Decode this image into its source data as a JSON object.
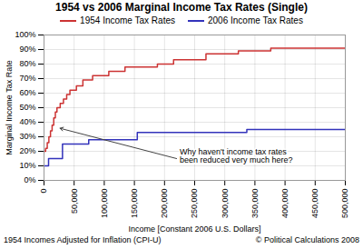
{
  "chart_data": {
    "type": "line",
    "title": "1954 vs 2006 Marginal Income Tax Rates (Single)",
    "x_label": "Income [Constant 2006 U.S. Dollars]",
    "y_label": "Marginal Income Tax Rate",
    "annotations": [
      {
        "text": "Why haven't income tax rates\nbeen reduced very much here?",
        "x": 25000,
        "y": 0.36
      }
    ],
    "footnotes": [
      "1954 Incomes Adjusted for Inflation (CPI-U)",
      "© Political Calculations 2008"
    ],
    "xlim": [
      0,
      500000
    ],
    "ylim": [
      0,
      1.0
    ],
    "xticks": [
      0,
      {
        "value": 50000,
        "label": "50,000"
      },
      {
        "value": 100000,
        "label": "100,000"
      },
      {
        "value": 150000,
        "label": "150,000"
      },
      {
        "value": 200000,
        "label": "200,000"
      },
      {
        "value": 250000,
        "label": "250,000"
      },
      {
        "value": 300000,
        "label": "300,000"
      },
      {
        "value": 350000,
        "label": "350,000"
      },
      {
        "value": 400000,
        "label": "400,000"
      },
      {
        "value": 450000,
        "label": "450,000"
      },
      {
        "value": 500000,
        "label": "500,000"
      }
    ],
    "yticks": [
      {
        "value": 0,
        "label": "0%"
      },
      {
        "value": 0.1,
        "label": "10%"
      },
      {
        "value": 0.2,
        "label": "20%"
      },
      {
        "value": 0.3,
        "label": "30%"
      },
      {
        "value": 0.4,
        "label": "40%"
      },
      {
        "value": 0.5,
        "label": "50%"
      },
      {
        "value": 0.6,
        "label": "60%"
      },
      {
        "value": 0.7,
        "label": "70%"
      },
      {
        "value": 0.8,
        "label": "80%"
      },
      {
        "value": 0.9,
        "label": "90%"
      },
      {
        "value": 1.0,
        "label": "100%"
      }
    ],
    "grid": true,
    "series": [
      {
        "name": "1954 Income Tax Rates",
        "color": "#cc3333",
        "x": [
          0,
          2690,
          2690,
          5380,
          5380,
          8066,
          8066,
          10752,
          10752,
          13440,
          13440,
          16128,
          16128,
          18814,
          18814,
          21502,
          21502,
          26878,
          26878,
          32254,
          32254,
          37630,
          37630,
          43004,
          43004,
          53756,
          53756,
          64506,
          64506,
          80634,
          80634,
          107512,
          107512,
          134388,
          134388,
          188142,
          188142,
          215018,
          215018,
          268772,
          268772,
          322526,
          322526,
          376280,
          376280,
          500000
        ],
        "values": [
          0.2,
          0.2,
          0.22,
          0.22,
          0.26,
          0.26,
          0.3,
          0.3,
          0.34,
          0.34,
          0.38,
          0.38,
          0.43,
          0.43,
          0.47,
          0.47,
          0.5,
          0.5,
          0.53,
          0.53,
          0.56,
          0.56,
          0.59,
          0.59,
          0.62,
          0.62,
          0.65,
          0.65,
          0.69,
          0.69,
          0.72,
          0.72,
          0.75,
          0.75,
          0.78,
          0.78,
          0.8,
          0.8,
          0.83,
          0.83,
          0.87,
          0.87,
          0.89,
          0.89,
          0.91,
          0.91
        ]
      },
      {
        "name": "2006 Income Tax Rates",
        "color": "#3333bb",
        "x": [
          0,
          7550,
          7550,
          30650,
          30650,
          74200,
          74200,
          154800,
          154800,
          336550,
          336550,
          500000
        ],
        "values": [
          0.1,
          0.1,
          0.15,
          0.15,
          0.25,
          0.25,
          0.28,
          0.28,
          0.33,
          0.33,
          0.35,
          0.35
        ]
      }
    ]
  }
}
